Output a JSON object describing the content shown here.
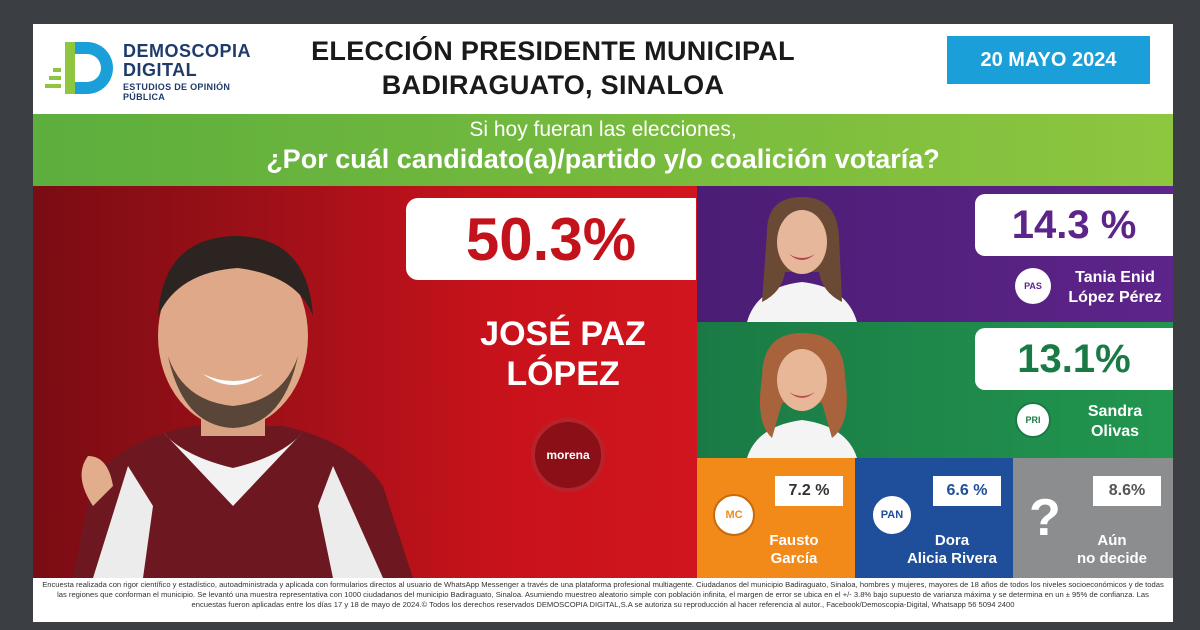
{
  "header": {
    "logo_name_line1": "DEMOSCOPIA",
    "logo_name_line2": "DIGITAL",
    "logo_subtitle": "ESTUDIOS DE OPINIÓN PÚBLICA",
    "title_line1": "ELECCIÓN PRESIDENTE MUNICIPAL",
    "title_line2": "BADIRAGUATO, SINALOA",
    "date": "20 MAYO 2024"
  },
  "question": {
    "line1": "Si hoy fueran las elecciones,",
    "line2": "¿Por cuál candidato(a)/partido y/o coalición votaría?"
  },
  "leader": {
    "percent": "50.3%",
    "name_line1": "JOSÉ PAZ",
    "name_line2": "LÓPEZ",
    "party": "morena"
  },
  "candidates": [
    {
      "percent": "14.3 %",
      "name_line1": "Tania Enid",
      "name_line2": "López Pérez",
      "party_logo": "PAS"
    },
    {
      "percent": "13.1%",
      "name_line1": "Sandra",
      "name_line2": "Olivas",
      "party_logo": "PRI"
    },
    {
      "percent": "7.2 %",
      "name_line1": "Fausto",
      "name_line2": "García",
      "party_logo": "MC"
    },
    {
      "percent": "6.6 %",
      "name_line1": "Dora",
      "name_line2": "Alicia Rivera",
      "party_logo": "PAN"
    },
    {
      "percent": "8.6%",
      "name_line1": "Aún",
      "name_line2": "no decide",
      "party_logo": "?"
    }
  ],
  "colors": {
    "morena": "#c3121b",
    "pas": "#5d2489",
    "pri": "#1a7a45",
    "mc": "#f28a1a",
    "pan": "#1f4f9a",
    "undecided": "#8c8d8f",
    "accent_date": "#1b9fd9",
    "band_green": "#6fb63f"
  },
  "footer": {
    "text": "Encuesta realizada con rigor científico y estadístico, autoadministrada y aplicada con formularios directos al usuario de WhatsApp Messenger a través de una plataforma profesional multiagente. Ciudadanos del municipio Badiraguato, Sinaloa, hombres y mujeres, mayores de 18 años de todos los niveles socioeconómicos y de todas las regiones que conforman el municipio. Se levantó una muestra representativa con 1000 ciudadanos del municipio Badiraguato, Sinaloa. Asumiendo muestreo aleatorio simple con población infinita, el margen de error se ubica en el +/- 3.8% bajo supuesto de varianza máxima y se determina en un ± 95% de confianza. Las encuestas fueron aplicadas entre los días 17 y 18 de mayo de 2024.© Todos los derechos reservados DEMOSCOPIA DIGITAL,S.A se autoriza su reproducción al hacer referencia al autor., Facebook/Demoscopia-Digital, Whatsapp 56 5094 2400"
  }
}
